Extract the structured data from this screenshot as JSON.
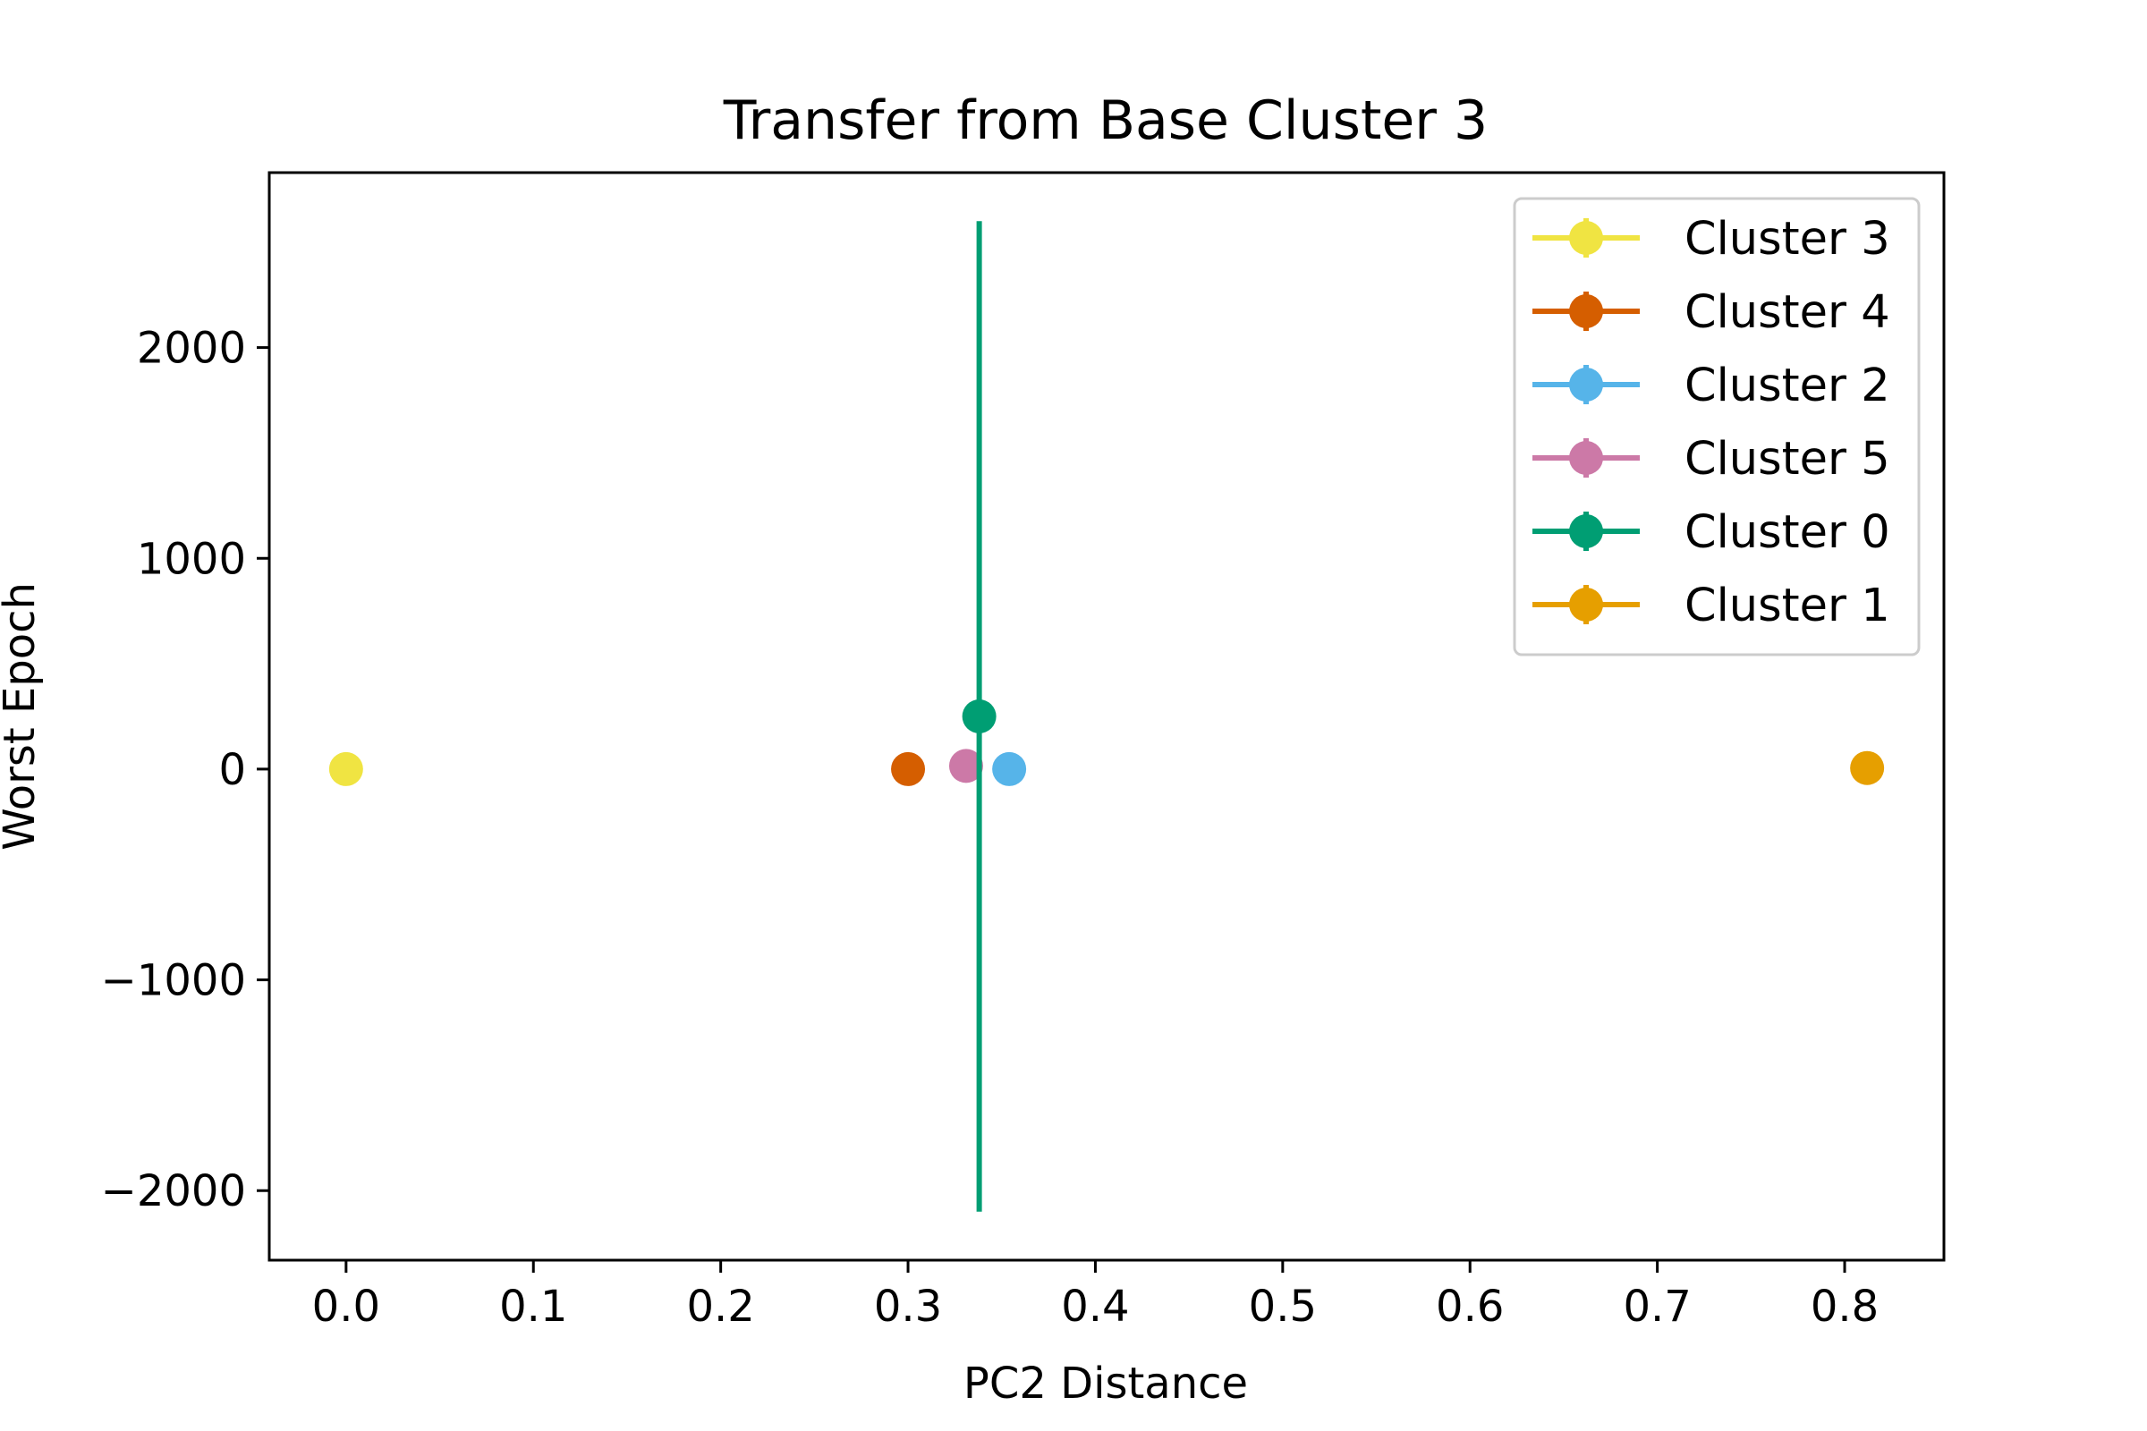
{
  "chart_data": {
    "type": "scatter",
    "title": "Transfer from Base Cluster 3",
    "xlabel": "PC2 Distance",
    "ylabel": "Worst Epoch",
    "xlim": [
      -0.041,
      0.853
    ],
    "ylim": [
      -2330,
      2830
    ],
    "x_ticks": [
      0.0,
      0.1,
      0.2,
      0.3,
      0.4,
      0.5,
      0.6,
      0.7,
      0.8
    ],
    "x_tick_labels": [
      "0.0",
      "0.1",
      "0.2",
      "0.3",
      "0.4",
      "0.5",
      "0.6",
      "0.7",
      "0.8"
    ],
    "y_ticks": [
      2000,
      1000,
      0,
      -1000,
      -2000
    ],
    "y_tick_labels": [
      "2000",
      "1000",
      "0",
      "−1000",
      "−2000"
    ],
    "grid": false,
    "legend_position": "top-right",
    "series": [
      {
        "name": "Cluster 3",
        "color": "#f0e442",
        "x": 0.0,
        "y": 0,
        "yerr": 0
      },
      {
        "name": "Cluster 4",
        "color": "#d55e00",
        "x": 0.3,
        "y": 0,
        "yerr": 0
      },
      {
        "name": "Cluster 2",
        "color": "#56b4e9",
        "x": 0.354,
        "y": 0,
        "yerr": 0
      },
      {
        "name": "Cluster 5",
        "color": "#cc79a7",
        "x": 0.331,
        "y": 15,
        "yerr": 0
      },
      {
        "name": "Cluster 0",
        "color": "#009e73",
        "x": 0.338,
        "y": 250,
        "yerr": 2350
      },
      {
        "name": "Cluster 1",
        "color": "#e69f00",
        "x": 0.812,
        "y": 5,
        "yerr": 0
      }
    ]
  }
}
